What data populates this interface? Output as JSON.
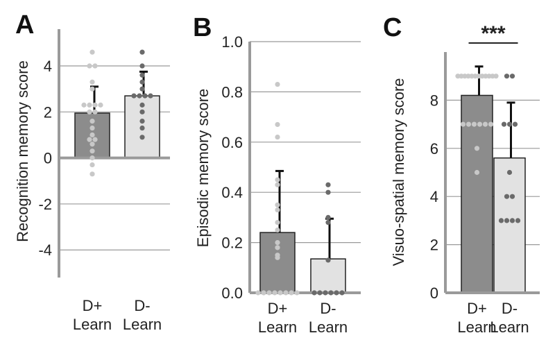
{
  "colors": {
    "dark_bar": "#8c8c8c",
    "light_bar": "#e2e2e2",
    "grid": "#999999",
    "axis": "#9a9a9a",
    "dot_light": "#c8c8c8",
    "dot_dark": "#6a6a6a"
  },
  "chart_data": [
    {
      "panel": "A",
      "type": "bar",
      "categories": [
        "D+\nLearn",
        "D-\nLearn"
      ],
      "values": [
        1.95,
        2.7
      ],
      "error_upper": [
        3.1,
        3.75
      ],
      "ylabel": "Recognition memory score",
      "ylim": [
        -5.2,
        5.6
      ],
      "yticks": [
        -4,
        -2,
        0,
        2,
        4
      ],
      "ytick_labels": [
        "-4",
        "-2",
        "0",
        "2",
        "4"
      ],
      "grid": true,
      "points": [
        [
          4.6,
          4.0,
          4.0,
          3.3,
          3.0,
          2.3,
          2.3,
          2.3,
          2.3,
          2.0,
          2.0,
          1.6,
          1.3,
          1.0,
          0.8,
          0.8,
          0.6,
          0.3,
          0.0,
          -0.3,
          -0.7
        ],
        [
          4.6,
          4.0,
          3.6,
          3.3,
          3.0,
          2.7,
          2.7,
          2.7,
          2.7,
          2.3,
          2.0,
          1.6,
          1.3,
          0.9
        ]
      ]
    },
    {
      "panel": "B",
      "type": "bar",
      "categories": [
        "D+\nLearn",
        "D-\nLearn"
      ],
      "values": [
        0.24,
        0.135
      ],
      "error_upper": [
        0.485,
        0.295
      ],
      "ylabel": "Episodic memory score",
      "ylim": [
        0.0,
        1.0
      ],
      "yticks": [
        0.0,
        0.2,
        0.4,
        0.6,
        0.8,
        1.0
      ],
      "ytick_labels": [
        "0.0",
        "0.2",
        "0.4",
        "0.6",
        "0.8",
        "1.0"
      ],
      "grid": true,
      "points": [
        [
          0.83,
          0.67,
          0.62,
          0.45,
          0.43,
          0.35,
          0.33,
          0.28,
          0.25,
          0.2,
          0.18,
          0.15,
          0.14,
          0.0,
          0.0,
          0.0,
          0.0,
          0.0,
          0.0,
          0.0,
          0.0
        ],
        [
          0.43,
          0.4,
          0.3,
          0.28,
          0.13,
          0.0,
          0.0,
          0.0,
          0.0,
          0.0,
          0.0
        ]
      ]
    },
    {
      "panel": "C",
      "type": "bar",
      "categories": [
        "D+\nLearn",
        "D-\nLearn"
      ],
      "values": [
        8.2,
        5.6
      ],
      "error_upper": [
        9.4,
        7.9
      ],
      "ylabel": "Visuo-spatial memory score",
      "ylim": [
        0,
        10
      ],
      "yticks": [
        0,
        2,
        4,
        6,
        8
      ],
      "ytick_labels": [
        "0",
        "2",
        "4",
        "6",
        "8"
      ],
      "grid": true,
      "significance": "***",
      "points": [
        [
          9,
          9,
          9,
          9,
          9,
          9,
          9,
          9,
          9,
          9,
          9,
          9,
          7,
          7,
          7,
          7,
          7,
          7,
          6,
          5
        ],
        [
          9,
          9,
          7,
          7,
          7,
          5,
          4,
          4,
          3,
          3,
          3,
          3
        ]
      ]
    }
  ]
}
